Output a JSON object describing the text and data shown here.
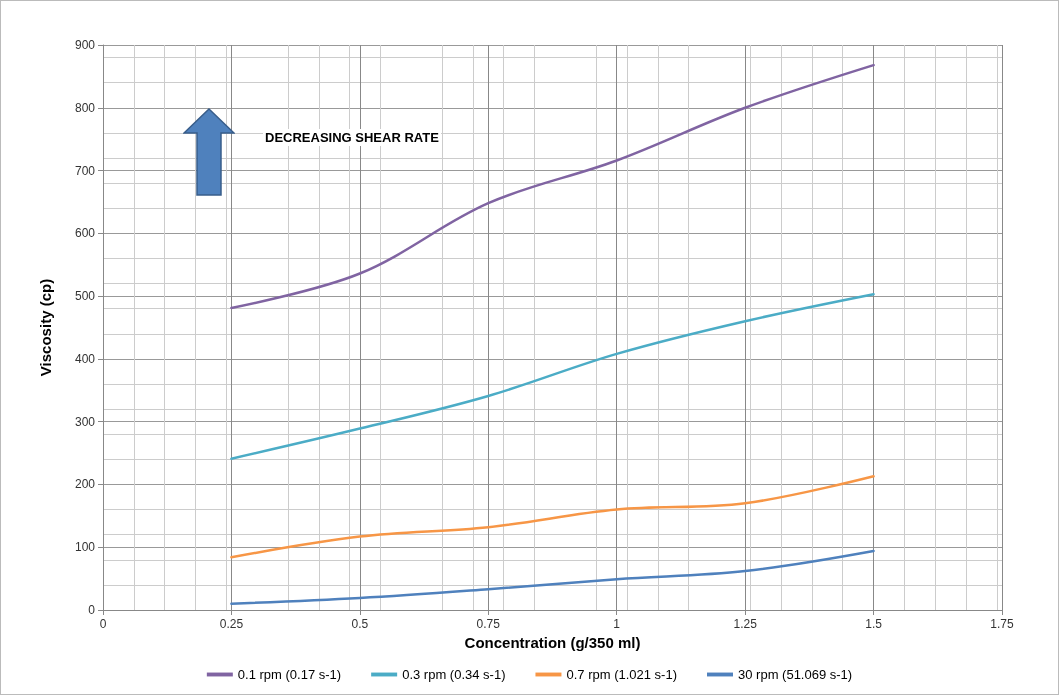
{
  "chart_data": {
    "type": "line",
    "xlabel": "Concentration (g/350 ml)",
    "ylabel": "Viscosity (cp)",
    "x": [
      0.25,
      0.5,
      0.75,
      1,
      1.25,
      1.5
    ],
    "series": [
      {
        "name": "0.1 rpm (0.17 s-1)",
        "color": "#8064a2",
        "values": [
          481,
          536,
          648,
          716,
          800,
          868
        ]
      },
      {
        "name": "0.3 rpm (0.34 s-1)",
        "color": "#4bacc6",
        "values": [
          241,
          289,
          341,
          408,
          460,
          503
        ]
      },
      {
        "name": "0.7 rpm (1.021 s-1)",
        "color": "#f79646",
        "values": [
          84,
          117,
          132,
          160,
          170,
          213
        ]
      },
      {
        "name": "30 rpm (51.069 s-1)",
        "color": "#4f81bd",
        "values": [
          10,
          19,
          33,
          49,
          62,
          94
        ]
      }
    ],
    "xlim": [
      0,
      1.75
    ],
    "xticks": [
      0,
      0.25,
      0.5,
      0.75,
      1,
      1.25,
      1.5,
      1.75
    ],
    "ylim": [
      0,
      900
    ],
    "yticks": [
      0,
      100,
      200,
      300,
      400,
      500,
      600,
      700,
      800,
      900
    ],
    "annotations": [
      "DECREASING SHEAR RATE"
    ],
    "grid": true,
    "legend": "bottom",
    "marker": "none",
    "line_style": "solid"
  }
}
